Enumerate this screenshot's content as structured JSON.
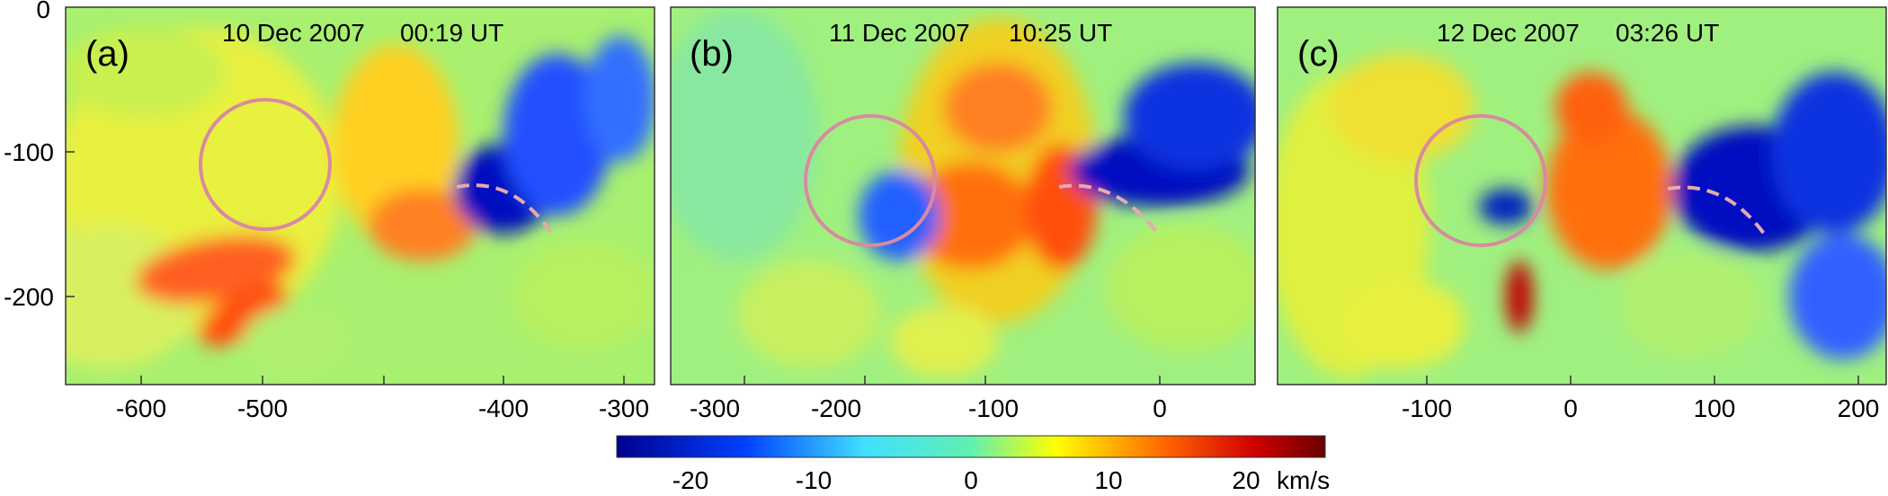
{
  "panels": [
    {
      "label": "(a)",
      "date": "10 Dec 2007",
      "time": "00:19 UT",
      "x_ticks": [
        "-600",
        "-500",
        "-400",
        "-300"
      ]
    },
    {
      "label": "(b)",
      "date": "11 Dec 2007",
      "time": "10:25 UT",
      "x_ticks": [
        "-300",
        "-200",
        "-100",
        "0"
      ]
    },
    {
      "label": "(c)",
      "date": "12 Dec 2007",
      "time": "03:26 UT",
      "x_ticks": [
        "-100",
        "0",
        "100",
        "200"
      ]
    }
  ],
  "y_ticks": [
    "0",
    "-100",
    "-200"
  ],
  "colorbar": {
    "ticks": [
      "-20",
      "-10",
      "0",
      "10",
      "20"
    ],
    "unit": "km/s",
    "colors": [
      "#00008f",
      "#0040ff",
      "#40e0ff",
      "#c8ff50",
      "#ffff00",
      "#ff6000",
      "#c00000",
      "#6a0000"
    ]
  },
  "annotations": {
    "circle_color": "#d98aa0",
    "dashed_curve_color": "#e8a8b0"
  }
}
